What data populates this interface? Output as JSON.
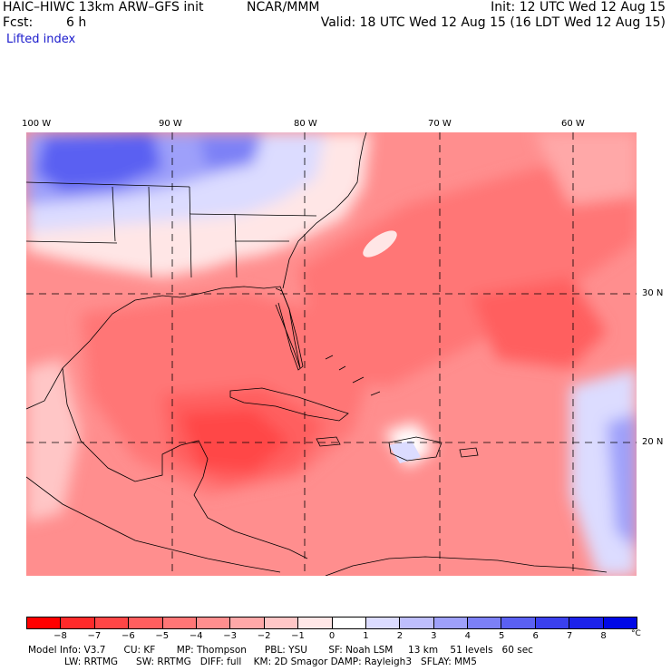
{
  "header": {
    "model": "HAIC–HIWC 13km ARW–GFS init",
    "org": "NCAR/MMM",
    "init": "Init: 12 UTC Wed 12 Aug 15",
    "fcst_label": "Fcst:",
    "fcst_value": "6 h",
    "valid": "Valid: 18 UTC Wed 12 Aug 15 (16 LDT Wed 12 Aug 15)",
    "field": "Lifted index"
  },
  "map": {
    "lon_labels": [
      "100 W",
      "90 W",
      "80 W",
      "70 W",
      "60 W"
    ],
    "lat_labels": [
      "30 N",
      "20 N"
    ],
    "colors": {
      "land_line": "#000000",
      "grid_line": "#000000",
      "cool_deep": "#3c46e6",
      "warm_deep": "#ee3a3a",
      "neutral": "#ffffff"
    }
  },
  "colorbar": {
    "ticks": [
      "−8",
      "−7",
      "−6",
      "−5",
      "−4",
      "−3",
      "−2",
      "−1",
      "0",
      "1",
      "2",
      "3",
      "4",
      "5",
      "6",
      "7",
      "8"
    ],
    "unit": "°C",
    "colors": [
      "#ff0000",
      "#ff2a2a",
      "#ff4646",
      "#ff5e5e",
      "#ff7676",
      "#ff8e8e",
      "#ffa8a8",
      "#ffc6c6",
      "#ffe6e6",
      "#ffffff",
      "#dcdcff",
      "#bebefc",
      "#9ea0fa",
      "#7c80f6",
      "#5a60f2",
      "#3a40ee",
      "#1c22ea",
      "#0008e6"
    ]
  },
  "model_info": {
    "line1": "Model Info: V3.7      CU: KF       MP: Thompson      PBL: YSU       SF: Noah LSM     13 km    51 levels   60 sec",
    "line2": "            LW: RRTMG      SW: RRTMG   DIFF: full    KM: 2D Smagor DAMP: Rayleigh3   SFLAY: MM5"
  }
}
